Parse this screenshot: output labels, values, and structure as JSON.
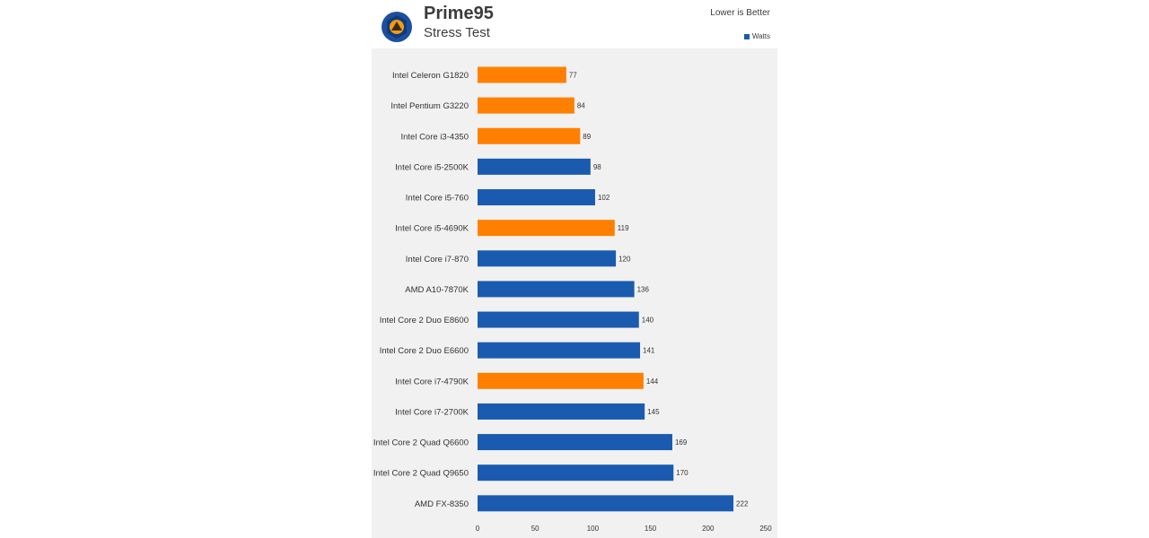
{
  "header": {
    "title": "Prime95",
    "subtitle": "Stress Test",
    "note": "Lower is Better",
    "legend_label": "Watts"
  },
  "colors": {
    "intel_haswell": "#ff7f00",
    "other": "#1a5bb0",
    "logo_ring": "#1c4f9e",
    "logo_accent": "#f39c12"
  },
  "chart_data": {
    "type": "bar",
    "orientation": "horizontal",
    "title": "Prime95",
    "subtitle": "Stress Test",
    "categories": [
      "Intel Celeron G1820",
      "Intel Pentium G3220",
      "Intel Core i3-4350",
      "Intel Core i5-2500K",
      "Intel Core i5-760",
      "Intel Core i5-4690K",
      "Intel Core i7-870",
      "AMD A10-7870K",
      "Intel Core 2 Duo E8600",
      "Intel Core 2 Duo E6600",
      "Intel Core i7-4790K",
      "Intel Core i7-2700K",
      "Intel Core 2 Quad Q6600",
      "Intel Core 2 Quad Q9650",
      "AMD FX-8350"
    ],
    "series": [
      {
        "name": "Watts",
        "values": [
          77,
          84,
          89,
          98,
          102,
          119,
          120,
          136,
          140,
          141,
          144,
          145,
          169,
          170,
          222
        ]
      }
    ],
    "highlight": [
      true,
      true,
      true,
      false,
      false,
      true,
      false,
      false,
      false,
      false,
      true,
      false,
      false,
      false,
      false
    ],
    "xlim": [
      0,
      250
    ],
    "xticks": [
      0,
      50,
      100,
      150,
      200,
      250
    ],
    "legend_position": "top-right",
    "grid": false
  }
}
